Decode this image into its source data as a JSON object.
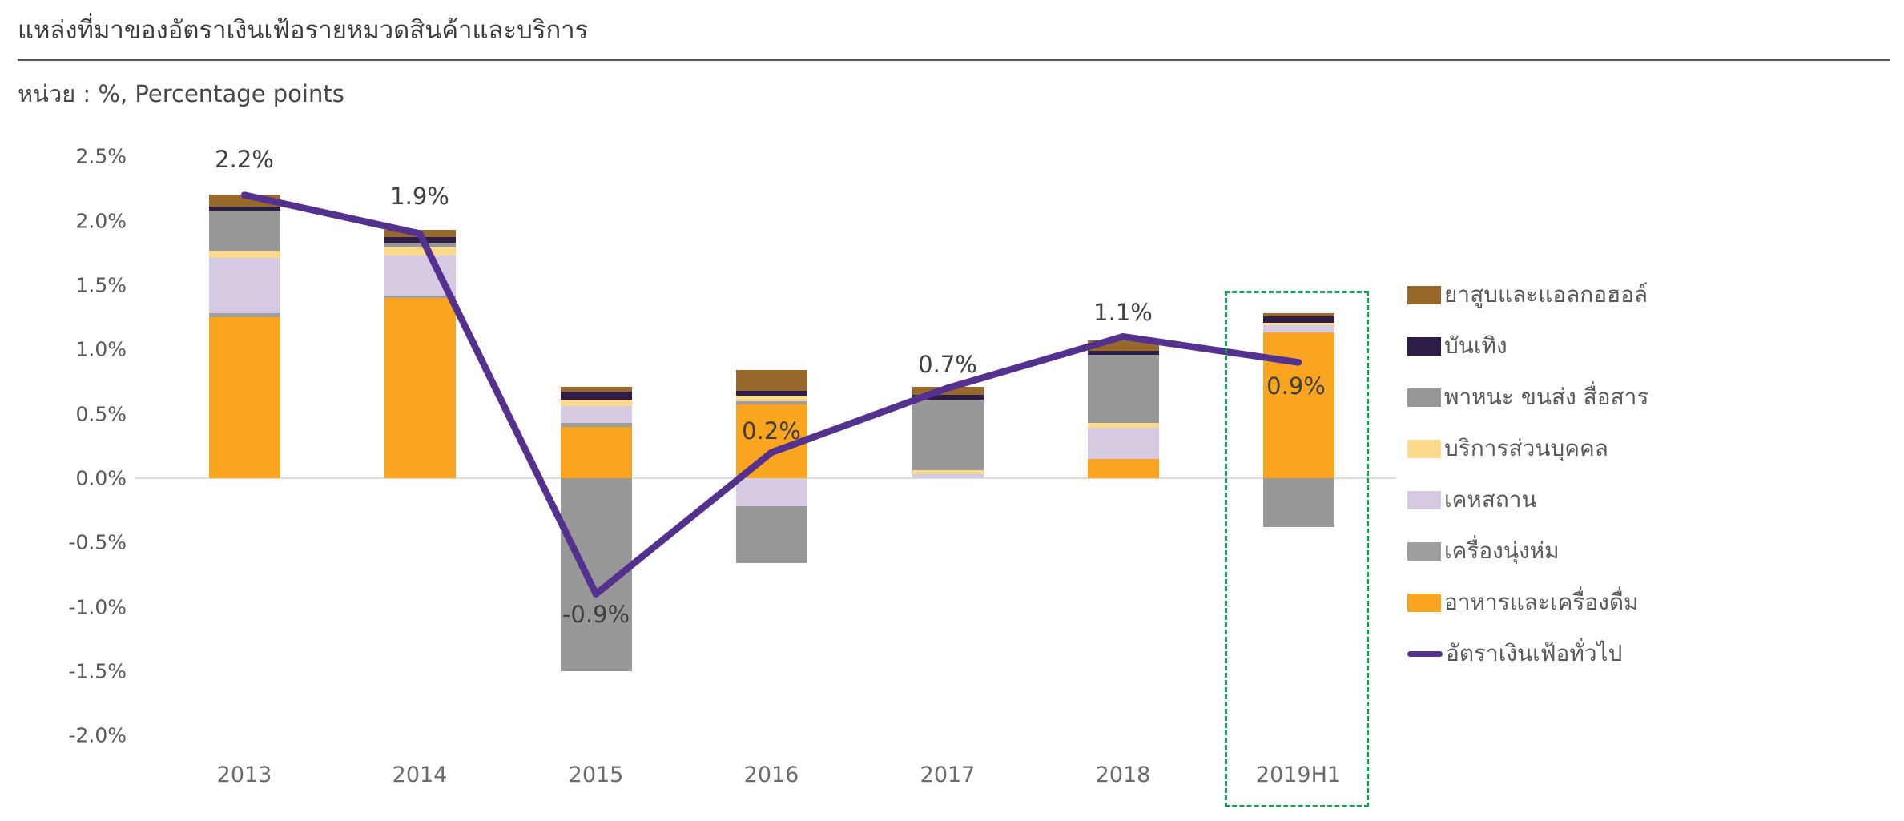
{
  "header": {
    "title": "แหล่งที่มาของอัตราเงินเฟ้อรายหมวดสินค้าและบริการ",
    "subtitle": "หน่วย : %, Percentage points"
  },
  "chart_data": {
    "type": "bar",
    "subtype": "stacked-bar-with-line",
    "title": "แหล่งที่มาของอัตราเงินเฟ้อรายหมวดสินค้าและบริการ",
    "unit_label": "หน่วย : %, Percentage points",
    "categories": [
      "2013",
      "2014",
      "2015",
      "2016",
      "2017",
      "2018",
      "2019H1"
    ],
    "series": [
      {
        "id": "food-beverages",
        "name": "อาหารและเครื่องดื่ม",
        "color": "#f9a51f",
        "values": [
          1.25,
          1.4,
          0.4,
          0.57,
          0.0,
          0.15,
          1.13
        ]
      },
      {
        "id": "clothing",
        "name": "เครื่องนุ่งห่ม",
        "color": "#9e9e9e",
        "values": [
          0.03,
          0.02,
          0.03,
          0.03,
          0.0,
          0.0,
          0.0
        ]
      },
      {
        "id": "housing",
        "name": "เคหสถาน",
        "color": "#d6cae3",
        "values": [
          0.43,
          0.31,
          0.13,
          -0.22,
          0.03,
          0.24,
          0.06
        ]
      },
      {
        "id": "personal-services",
        "name": "บริการส่วนบุคคล",
        "color": "#fbd98d",
        "values": [
          0.06,
          0.07,
          0.05,
          0.04,
          0.03,
          0.04,
          0.02
        ]
      },
      {
        "id": "vehicles-transport-communication",
        "name": "พาหนะ ขนส่ง สื่อสาร",
        "color": "#989898",
        "values": [
          0.31,
          0.03,
          -1.5,
          -0.44,
          0.55,
          0.53,
          -0.38
        ]
      },
      {
        "id": "entertainment",
        "name": "บันเทิง",
        "color": "#2e1c49",
        "values": [
          0.03,
          0.04,
          0.06,
          0.04,
          0.04,
          0.03,
          0.05
        ]
      },
      {
        "id": "tobacco-alcohol",
        "name": "ยาสูบและแอลกอฮอล์",
        "color": "#98692a",
        "values": [
          0.09,
          0.06,
          0.04,
          0.16,
          0.06,
          0.08,
          0.02
        ]
      }
    ],
    "line_series": {
      "id": "headline-inflation",
      "name": "อัตราเงินเฟ้อทั่วไป",
      "color": "#54318e",
      "values": [
        2.2,
        1.9,
        -0.9,
        0.2,
        0.7,
        1.1,
        0.9
      ]
    },
    "point_labels": [
      "2.2%",
      "1.9%",
      "-0.9%",
      "0.2%",
      "0.7%",
      "1.1%",
      "0.9%"
    ],
    "y_ticks": [
      "2.5%",
      "2.0%",
      "1.5%",
      "1.0%",
      "0.5%",
      "0.0%",
      "-0.5%",
      "-1.0%",
      "-1.5%",
      "-2.0%"
    ],
    "ylim": [
      -2.0,
      2.5
    ],
    "grid": "zero-line-only",
    "legend_position": "right",
    "highlight": {
      "category": "2019H1",
      "style": "dashed-box",
      "color": "#0da152"
    }
  },
  "legend": {
    "items": [
      {
        "id": "tobacco-alcohol",
        "label": "ยาสูบและแอลกอฮอล์",
        "color": "#98692a",
        "type": "box"
      },
      {
        "id": "entertainment",
        "label": "บันเทิง",
        "color": "#2e1c49",
        "type": "box"
      },
      {
        "id": "vehicles-transport-communication",
        "label": "พาหนะ ขนส่ง สื่อสาร",
        "color": "#989898",
        "type": "box"
      },
      {
        "id": "personal-services",
        "label": "บริการส่วนบุคคล",
        "color": "#fbd98d",
        "type": "box"
      },
      {
        "id": "housing",
        "label": "เคหสถาน",
        "color": "#d6cae3",
        "type": "box"
      },
      {
        "id": "clothing",
        "label": "เครื่องนุ่งห่ม",
        "color": "#9e9e9e",
        "type": "box"
      },
      {
        "id": "food-beverages",
        "label": "อาหารและเครื่องดื่ม",
        "color": "#f9a51f",
        "type": "box"
      },
      {
        "id": "headline-inflation",
        "label": "อัตราเงินเฟ้อทั่วไป",
        "color": "#54318e",
        "type": "line"
      }
    ]
  }
}
